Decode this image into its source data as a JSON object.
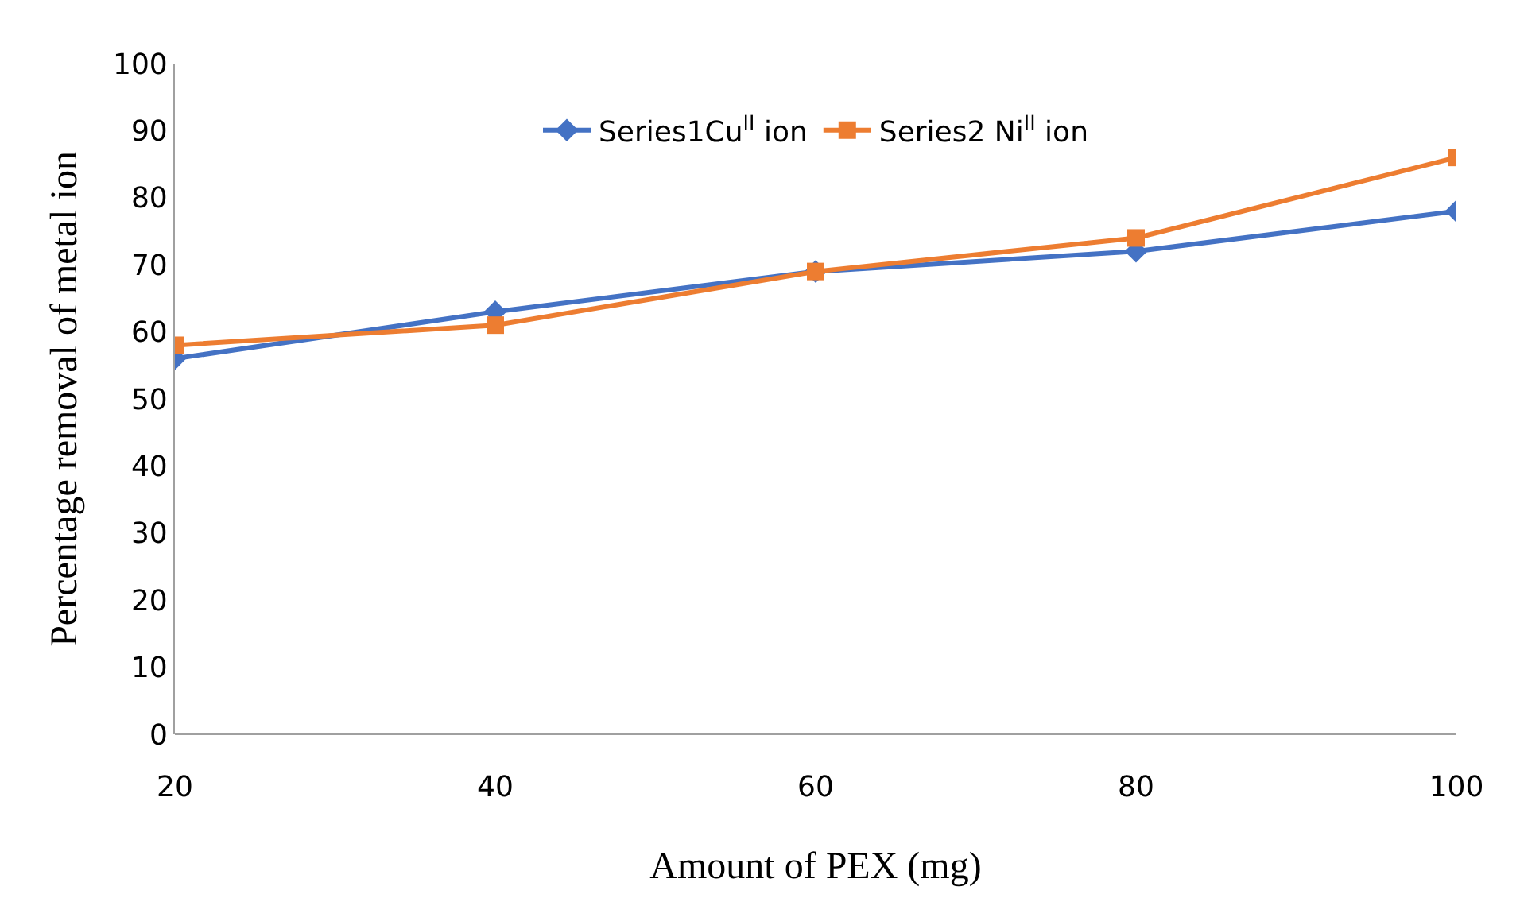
{
  "chart_data": {
    "type": "line",
    "xlabel": "Amount of PEX (mg)",
    "ylabel": "Percentage removal of metal ion",
    "x": [
      20,
      40,
      60,
      80,
      100
    ],
    "series": [
      {
        "name": "Series1Cu$^{II}$ ion",
        "color": "#4472c4",
        "marker": "diamond",
        "values": [
          56,
          63,
          69,
          72,
          78
        ]
      },
      {
        "name": "Series2 Ni$^{II}$ ion",
        "color": "#ed7d31",
        "marker": "square",
        "values": [
          58,
          61,
          69,
          74,
          86
        ]
      }
    ],
    "xlim": [
      20,
      100
    ],
    "xticks": [
      20,
      40,
      60,
      80,
      100
    ],
    "ylim": [
      0,
      100
    ],
    "yticks": [
      0,
      10,
      20,
      30,
      40,
      50,
      60,
      70,
      80,
      90,
      100
    ],
    "legend": "top",
    "line_style": "solid"
  }
}
